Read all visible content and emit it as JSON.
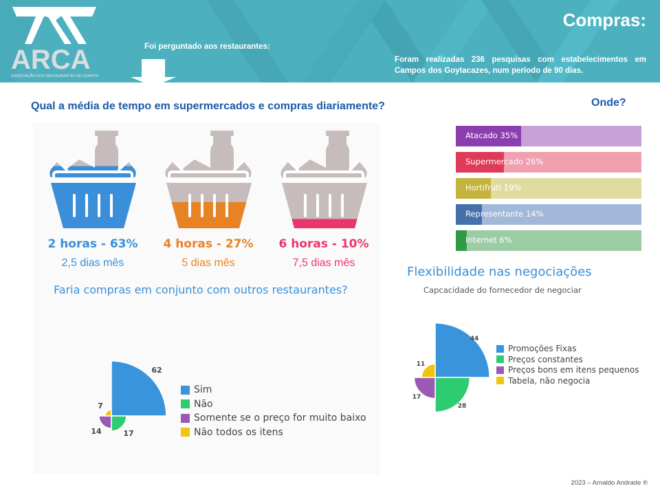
{
  "header": {
    "logo_text": "ARCA",
    "logo_subtitle": "ASSOCIAÇÃO DOS RESTAURANTES DE CAMPOS",
    "title": "Compras:",
    "intro": "Foi perguntado aos restaurantes:",
    "survey_note": "Foram realizadas 236 pesquisas com estabelecimentos em Campos dos Goytacazes, num período de 90 dias."
  },
  "time_question": {
    "title": "Qual a média de tempo em supermercados e compras diariamente?",
    "items": [
      {
        "hours": "2 horas - 63%",
        "days": "2,5 dias mês",
        "percent": 63,
        "color": "#3a8fd8"
      },
      {
        "hours": "4 horas - 27%",
        "days": "5 dias mês",
        "percent": 27,
        "color": "#e88325"
      },
      {
        "hours": "6 horas - 10%",
        "days": "7,5 dias mês",
        "percent": 10,
        "color": "#e8386b"
      }
    ]
  },
  "where": {
    "title": "Onde?",
    "bars": [
      {
        "label": "Atacado 35%",
        "percent": 35,
        "dark": "#8b3eae",
        "light": "#c8a0d8"
      },
      {
        "label": "Supermercado 26%",
        "percent": 26,
        "dark": "#de3b58",
        "light": "#f0a0ae"
      },
      {
        "label": "Hortifruti 19%",
        "percent": 19,
        "dark": "#c4b33c",
        "light": "#e0dca0"
      },
      {
        "label": "Representante 14%",
        "percent": 14,
        "dark": "#4470ab",
        "light": "#a2b8d8"
      },
      {
        "label": "Internet 6%",
        "percent": 6,
        "dark": "#2f9a48",
        "light": "#9ccca4"
      }
    ]
  },
  "chart_data": [
    {
      "type": "polar-area",
      "title": "Faria compras em conjunto com outros restaurantes?",
      "categories": [
        "Sim",
        "Não",
        "Somente se o preço for muito baixo",
        "Não todos os itens"
      ],
      "values": [
        62,
        17,
        14,
        7
      ],
      "colors": [
        "#3a94db",
        "#2ecc71",
        "#9b59b6",
        "#f1c40f"
      ],
      "legend": "right"
    },
    {
      "type": "polar-area",
      "title": "Flexibilidade nas negociações",
      "subtitle": "Capcacidade do fornecedor de negociar",
      "categories": [
        "Promoções Fixas",
        "Preços constantes",
        "Preços bons em itens pequenos",
        "Tabela, não negocia"
      ],
      "values": [
        44,
        28,
        17,
        11
      ],
      "colors": [
        "#3a94db",
        "#2ecc71",
        "#9b59b6",
        "#f1c40f"
      ],
      "legend": "right"
    }
  ],
  "footer": {
    "credit": "2023 – Arnaldo Andrade ®"
  }
}
